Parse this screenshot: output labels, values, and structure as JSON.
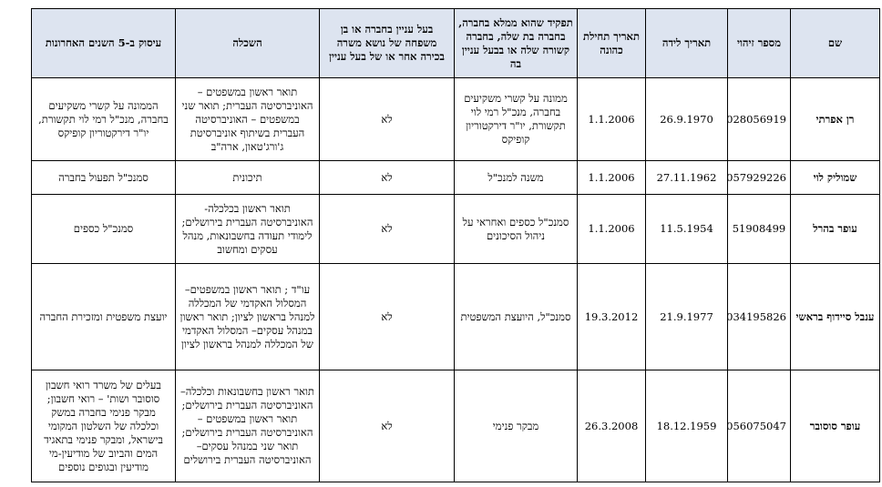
{
  "table": {
    "headers": {
      "name": "שם",
      "id": "מספר זיהוי",
      "birth": "תאריך לידה",
      "start": "תאריך תחילת כהונה",
      "role": "תפקיד שהוא ממלא בחברה, בחברה בת שלה, בחברה קשורה שלה או בבעל עניין בה",
      "family": "בעל עניין בחברה או בן משפחה של נושא משרה בכירה אחר או של בעל עניין",
      "education": "השכלה",
      "employment": "עיסוק ב-5 השנים האחרונות"
    },
    "rows": [
      {
        "name": "רן אפרתי",
        "id": "028056919",
        "birth": "26.9.1970",
        "start": "1.1.2006",
        "role": "ממונה על קשרי משקיעים בחברה, מנכ\"ל רמי לוי תקשורת, יו\"ר דירקטוריון קופיקס",
        "family": "לא",
        "education": "תואר ראשון במשפטים – האוניברסיטה העברית; תואר שני במשפטים – האוניברסיטה העברית בשיתוף אוניברסיטת ג'ורג'טאון, ארה\"ב",
        "employment": "הממונה על קשרי משקיעים בחברה, מנכ\"ל רמי לוי תקשורת, יו\"ר דירקטוריון קופיקס"
      },
      {
        "name": "שמוליק לוי",
        "id": "057929226",
        "birth": "27.11.1962",
        "start": "1.1.2006",
        "role": "משנה למנכ\"ל",
        "family": "לא",
        "education": "תיכונית",
        "employment": "סמנכ\"ל תפעול בחברה"
      },
      {
        "name": "עופר בהרל",
        "id": "51908499",
        "birth": "11.5.1954",
        "start": "1.1.2006",
        "role": "סמנכ\"ל כספים ואחראי על ניהול הסיכונים",
        "family": "לא",
        "education": "תואר ראשון בכלכלה- האוניברסיטה העברית בירושלים; לימודי תעודה בחשבונאות, מנהל עסקים ומחשוב",
        "employment": "סמנכ\"ל כספים"
      },
      {
        "name": "ענבל סיידוף בראשי",
        "id": "034195826",
        "birth": "21.9.1977",
        "start": "19.3.2012",
        "role": "סמנכ\"ל, היועצת המשפטית",
        "family": "לא",
        "education": "עו\"ד ; תואר ראשון במשפטים– המסלול האקדמי של המכללה למנהל בראשון לציון; תואר ראשון במנהל עסקים– המסלול האקדמי של המכללה למנהל בראשון לציון",
        "employment": "יועצת משפטית ומזכירת החברה"
      },
      {
        "name": "עופר סוסובר",
        "id": "056075047",
        "birth": "18.12.1959",
        "start": "26.3.2008",
        "role": "מבקר פנימי",
        "family": "לא",
        "education": "תואר ראשון בחשבונאות וכלכלה– האוניברסיטה העברית בירושלים; תואר ראשון במשפטים – האוניברסיטה העברית בירושלים; תואר שני במנהל עסקים– האוניברסיטה העברית בירושלים",
        "employment": "בעלים של משרד רואי חשבון סוסובר ושות' – רואי חשבון; מבקר פנימי בחברה במשק וכלכלה של השלטון המקומי בישראל, ומבקר פנימי בתאגיד המים והביוב של מודיעין-מי מודיעין ובגופים נוספים"
      }
    ]
  }
}
